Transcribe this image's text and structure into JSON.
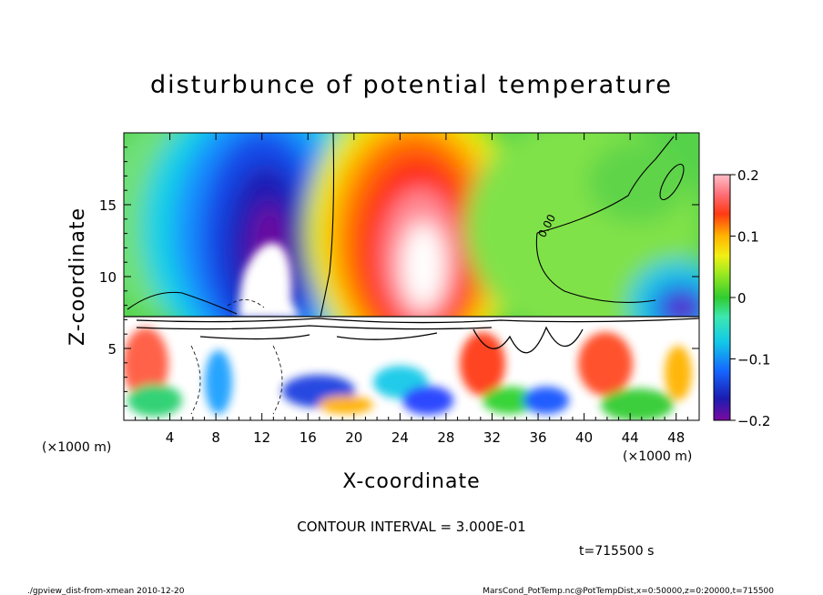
{
  "chart_data": {
    "type": "heatmap",
    "title": "disturbunce of potential temperature",
    "xlabel": "X-coordinate",
    "ylabel": "Z-coordinate",
    "x_unit": "(×1000 m)",
    "y_unit": "(×1000 m)",
    "xlim": [
      0,
      50
    ],
    "ylim": [
      0,
      20
    ],
    "x_ticks": [
      4,
      8,
      12,
      16,
      20,
      24,
      28,
      32,
      36,
      40,
      44,
      48
    ],
    "y_ticks": [
      5,
      10,
      15
    ],
    "colorbar": {
      "min": -0.2,
      "max": 0.2,
      "ticks": [
        "0.2",
        "0.1",
        "0",
        "−0.1",
        "−0.2"
      ]
    },
    "contour_label": "0.00",
    "features": [
      {
        "kind": "negative-plume",
        "x_center": 12,
        "z_top": 19.5,
        "z_core": 13.5,
        "peak": -0.2
      },
      {
        "kind": "positive-plume",
        "x_center": 25,
        "z_top": 19.5,
        "z_core": 11.5,
        "peak": 0.2
      },
      {
        "kind": "negative-cell",
        "x_center": 48,
        "z_core": 7.5,
        "peak": -0.15
      },
      {
        "kind": "positive-cell",
        "x_center": 43.5,
        "z_core": 14,
        "peak": 0.05
      }
    ],
    "boundary_layer_top": 7.5,
    "contour_interval_text": "CONTOUR INTERVAL = 3.000E-01",
    "time_text": "t=715500 s",
    "grid": false
  },
  "footer": {
    "left": "./gpview_dist-from-xmean 2010-12-20",
    "right": "MarsCond_PotTemp.nc@PotTempDist,x=0:50000,z=0:20000,t=715500"
  }
}
